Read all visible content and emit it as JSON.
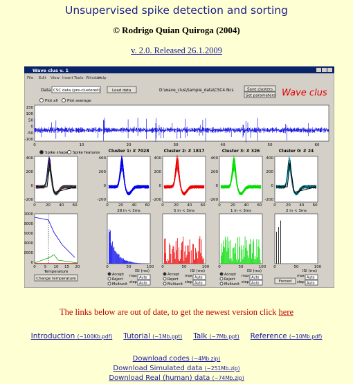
{
  "header": {
    "title": "Unsupervised spike detection and sorting",
    "author": "© Rodrigo Quian Quiroga (2004)",
    "version": "v. 2.0. Released 26.1.2009"
  },
  "gui": {
    "window_title": "Wave clus    v. 1",
    "menu": [
      "File",
      "Edit",
      "View",
      "Insert",
      "Tools",
      "Window",
      "Help"
    ],
    "data_label": "Data",
    "data_select": "CSC data (pre-clustered)",
    "load_button": "Load data",
    "file_path": "D:\\wave_clus\\Sample_data\\CSC4.Ncs",
    "save_button": "Save clusters",
    "params_button": "Set parameters",
    "logo": "Wave clus",
    "plot_modes": [
      "Plot all",
      "Plot average"
    ],
    "view_modes": [
      "Spike shapes",
      "Spike features"
    ],
    "signal_yticks": [
      "150",
      "100",
      "50",
      "0",
      "-50",
      "-100"
    ],
    "signal_xticks": [
      "0",
      "10",
      "20",
      "30",
      "40",
      "50",
      "60"
    ],
    "clusters": [
      {
        "label": "Cluster 1:  # 7028",
        "isi_note": "28 in < 3ms"
      },
      {
        "label": "Cluster 2:  # 1817",
        "isi_note": "5 in < 3ms"
      },
      {
        "label": "Cluster 3:  # 326",
        "isi_note": "1 in < 3ms"
      },
      {
        "label": "Cluster 0:  # 24",
        "isi_note": "2 in < 3ms"
      }
    ],
    "waveform_yticks": [
      "400",
      "200",
      "0",
      "-200"
    ],
    "waveform_xticks": [
      "0",
      "20",
      "40",
      "60"
    ],
    "temperature_yticks": [
      "0000",
      "8000",
      "6000",
      "4000",
      "2000",
      "0"
    ],
    "temperature_xticks": [
      "0",
      "5",
      "10",
      "15",
      "20"
    ],
    "temperature_label": "Temperature",
    "temperature_button": "Change temperature",
    "isi_xticks": [
      "0",
      "50",
      "100"
    ],
    "isi_label": "ISI (ms)",
    "isi_options": [
      "Accept",
      "Reject",
      "Multiunit"
    ],
    "max_label": "max",
    "step_label": "step",
    "auto_label": "Auto",
    "forced_label": "Forced"
  },
  "notice": {
    "text": "The links below are out of date, to get the newest version click ",
    "link": "here"
  },
  "links": [
    {
      "name": "Introduction",
      "size": "(~100Kb.pdf)"
    },
    {
      "name": "Tutorial",
      "size": "(~1Mb.ppt)"
    },
    {
      "name": "Talk",
      "size": "(~7Mb.ppt)"
    },
    {
      "name": "Reference",
      "size": "(~10Mb.pdf)"
    }
  ],
  "downloads": [
    {
      "name": "Download codes",
      "size": "(~4Mb.zip)"
    },
    {
      "name": "Download Simulated data",
      "size": "(~251Mb.zip)"
    },
    {
      "name": "Download Real (human) data",
      "size": "(~74Mb.zip)"
    }
  ]
}
